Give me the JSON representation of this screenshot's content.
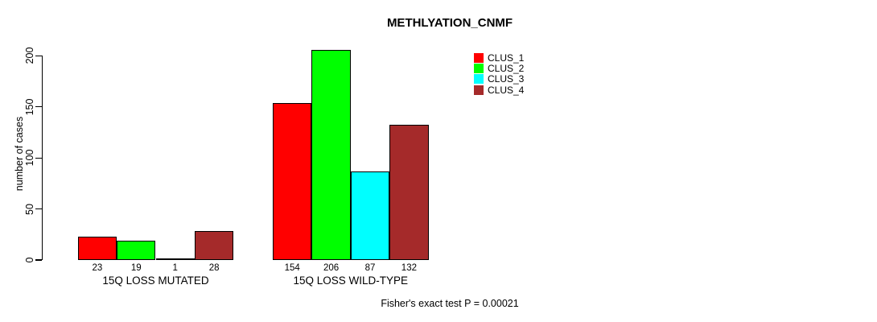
{
  "chart_data": {
    "type": "bar",
    "title": "METHLYATION_CNMF",
    "ylabel": "number of cases",
    "xlabel": "",
    "ylim": [
      0,
      200
    ],
    "yticks": [
      0,
      50,
      100,
      150,
      200
    ],
    "grid": false,
    "legend_position": "top-right-inside",
    "bar_value_labels": true,
    "categories": [
      "15Q LOSS MUTATED",
      "15Q LOSS WILD-TYPE"
    ],
    "series": [
      {
        "name": "CLUS_1",
        "color": "#FF0000",
        "values": [
          23,
          154
        ]
      },
      {
        "name": "CLUS_2",
        "color": "#00FF00",
        "values": [
          19,
          206
        ]
      },
      {
        "name": "CLUS_3",
        "color": "#00FFFF",
        "values": [
          1,
          87
        ]
      },
      {
        "name": "CLUS_4",
        "color": "#A52A2A",
        "values": [
          28,
          132
        ]
      }
    ],
    "annotation": "Fisher's exact test P = 0.00021"
  }
}
